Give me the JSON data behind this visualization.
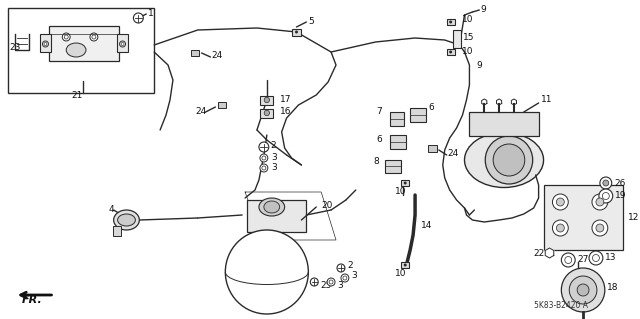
{
  "background_color": "#ffffff",
  "diagram_code": "5K83-B2420 A",
  "line_color": "#2a2a2a",
  "line_width": 1.0,
  "label_fontsize": 6.5,
  "label_color": "#111111"
}
